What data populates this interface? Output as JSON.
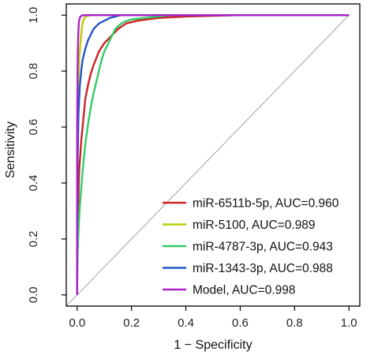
{
  "chart_data": {
    "type": "line",
    "title": "",
    "xlabel": "1 − Specificity",
    "ylabel": "Sensitivity",
    "xlim": [
      -0.04,
      1.04
    ],
    "ylim": [
      -0.04,
      1.04
    ],
    "x_ticks": [
      "0.0",
      "0.2",
      "0.4",
      "0.6",
      "0.8",
      "1.0"
    ],
    "y_ticks": [
      "0.0",
      "0.2",
      "0.4",
      "0.6",
      "0.8",
      "1.0"
    ],
    "x_tick_values": [
      0,
      0.2,
      0.4,
      0.6,
      0.8,
      1.0
    ],
    "y_tick_values": [
      0,
      0.2,
      0.4,
      0.6,
      0.8,
      1.0
    ],
    "grid": false,
    "legend_position": "bottom-right",
    "reference_line": {
      "from": [
        -0.04,
        -0.04
      ],
      "to": [
        1.0,
        1.0
      ],
      "color": "#b0b0b0"
    },
    "series": [
      {
        "name": "miR-6511b-5p, AUC=0.960",
        "color": "#cc2222",
        "x": [
          0,
          0,
          0.002,
          0.004,
          0.006,
          0.008,
          0.01,
          0.015,
          0.02,
          0.025,
          0.03,
          0.04,
          0.05,
          0.06,
          0.08,
          0.1,
          0.12,
          0.15,
          0.18,
          0.22,
          0.3,
          0.4,
          0.6,
          1.0
        ],
        "y": [
          0,
          0.05,
          0.2,
          0.3,
          0.4,
          0.45,
          0.48,
          0.55,
          0.6,
          0.65,
          0.7,
          0.75,
          0.79,
          0.82,
          0.87,
          0.9,
          0.92,
          0.95,
          0.97,
          0.98,
          0.99,
          0.995,
          1.0,
          1.0
        ]
      },
      {
        "name": "miR-5100, AUC=0.989",
        "color": "#bbcc00",
        "x": [
          0,
          0,
          0.002,
          0.004,
          0.008,
          0.012,
          0.015,
          0.018,
          0.022,
          0.03,
          0.05,
          0.1,
          1.0
        ],
        "y": [
          0,
          0.3,
          0.6,
          0.75,
          0.85,
          0.9,
          0.93,
          0.96,
          0.98,
          0.995,
          1.0,
          1.0,
          1.0
        ]
      },
      {
        "name": "miR-4787-3p, AUC=0.943",
        "color": "#33cc66",
        "x": [
          0,
          0,
          0.003,
          0.006,
          0.01,
          0.015,
          0.02,
          0.025,
          0.03,
          0.04,
          0.05,
          0.06,
          0.07,
          0.08,
          0.09,
          0.1,
          0.11,
          0.12,
          0.13,
          0.14,
          0.15,
          0.17,
          0.2,
          0.25,
          0.3,
          0.35,
          0.5,
          1.0
        ],
        "y": [
          0,
          0.08,
          0.18,
          0.25,
          0.32,
          0.38,
          0.44,
          0.49,
          0.54,
          0.61,
          0.67,
          0.72,
          0.76,
          0.8,
          0.84,
          0.87,
          0.89,
          0.91,
          0.93,
          0.95,
          0.96,
          0.975,
          0.985,
          0.99,
          0.995,
          1.0,
          1.0,
          1.0
        ]
      },
      {
        "name": "miR-1343-3p, AUC=0.988",
        "color": "#2255cc",
        "x": [
          0,
          0,
          0.002,
          0.005,
          0.01,
          0.015,
          0.02,
          0.03,
          0.04,
          0.05,
          0.06,
          0.08,
          0.1,
          0.12,
          0.14,
          0.16,
          0.2,
          0.3,
          1.0
        ],
        "y": [
          0,
          0.2,
          0.5,
          0.65,
          0.75,
          0.8,
          0.84,
          0.88,
          0.91,
          0.93,
          0.95,
          0.97,
          0.98,
          0.99,
          0.995,
          1.0,
          1.0,
          1.0,
          1.0
        ]
      },
      {
        "name": "Model, AUC=0.998",
        "color": "#aa22cc",
        "x": [
          0,
          0,
          0.002,
          0.004,
          0.006,
          0.008,
          0.012,
          0.02,
          0.05,
          1.0
        ],
        "y": [
          0,
          0.6,
          0.85,
          0.93,
          0.97,
          0.985,
          0.995,
          1.0,
          1.0,
          1.0
        ]
      }
    ]
  }
}
